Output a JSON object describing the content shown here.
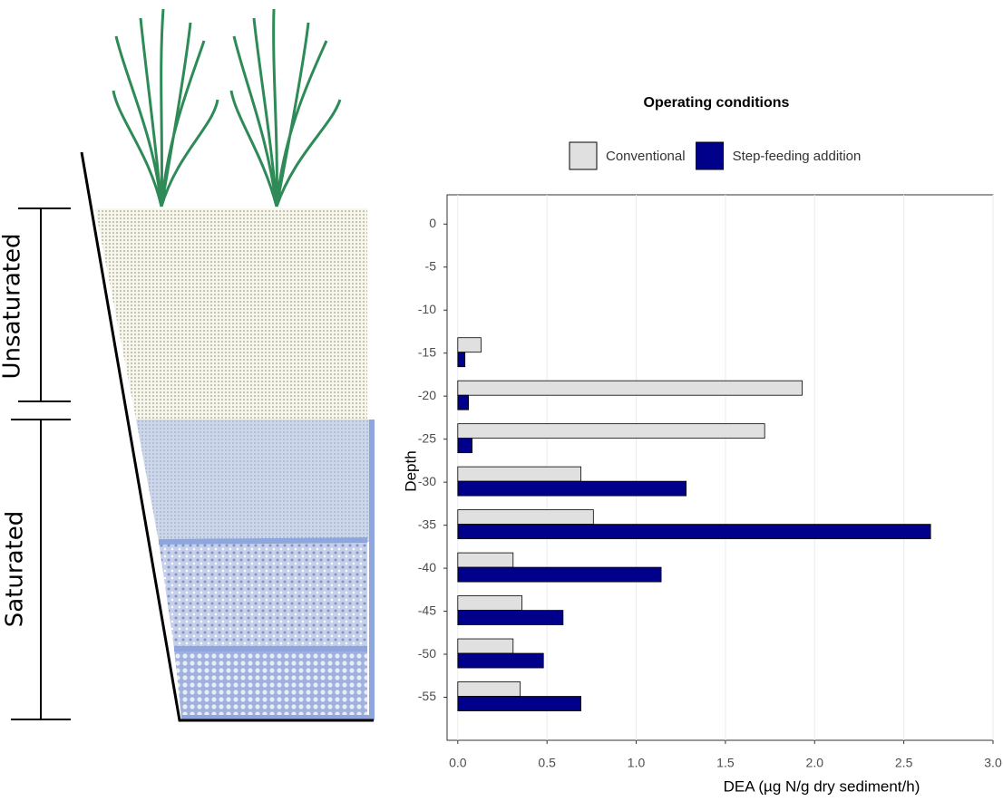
{
  "diagram": {
    "labels": [
      "Unsaturated",
      "Saturated"
    ]
  },
  "chart_data": {
    "type": "barh",
    "legend_title": "Operating conditions",
    "x_label": "DEA (µg N/g dry sediment/h)",
    "y_label": "Depth",
    "y": [
      -15,
      -20,
      -25,
      -30,
      -35,
      -40,
      -45,
      -50,
      -55
    ],
    "series": [
      {
        "name": "Conventional",
        "color": "#e0e0e0",
        "values": [
          0.13,
          1.93,
          1.72,
          0.69,
          0.76,
          0.31,
          0.36,
          0.31,
          0.35
        ]
      },
      {
        "name": "Step-feeding addition",
        "color": "#00008b",
        "values": [
          0.04,
          0.06,
          0.08,
          1.28,
          2.65,
          1.14,
          0.59,
          0.48,
          0.69
        ]
      }
    ],
    "xlim": [
      -0.06,
      3.0
    ],
    "xticks": [
      {
        "value": 0,
        "label": "0.0"
      },
      {
        "value": 0.5,
        "label": "0.5"
      },
      {
        "value": 1,
        "label": "1.0"
      },
      {
        "value": 1.5,
        "label": "1.5"
      },
      {
        "value": 2,
        "label": "2.0"
      },
      {
        "value": 2.5,
        "label": "2.5"
      },
      {
        "value": 3,
        "label": "3.0"
      }
    ],
    "ylim": [
      -60,
      3.4
    ],
    "yticks": [
      0,
      -5,
      -10,
      -15,
      -20,
      -25,
      -30,
      -35,
      -40,
      -45,
      -50,
      -55
    ],
    "grid": true,
    "legend": "top"
  }
}
